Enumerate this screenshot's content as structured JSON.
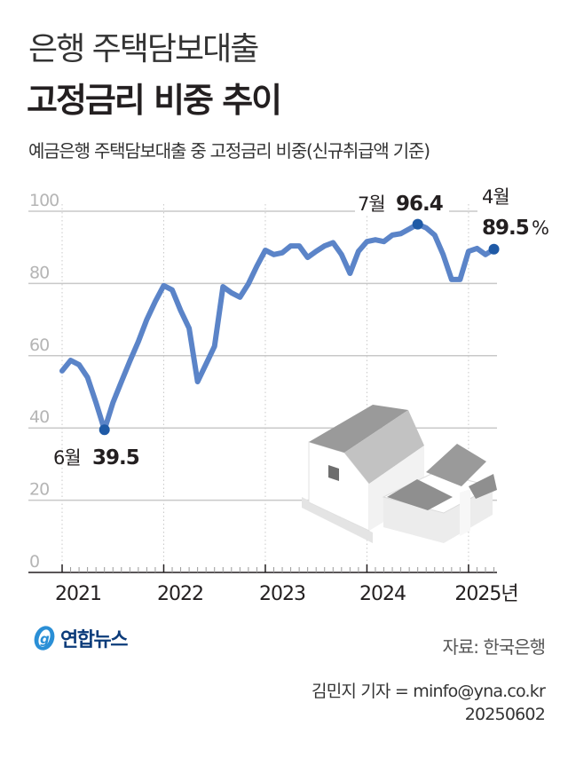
{
  "header": {
    "title_line1": "은행 주택담보대출",
    "title_line2": "고정금리 비중 추이",
    "subtitle": "예금은행 주택담보대출 중 고정금리 비중(신규취급액 기준)"
  },
  "chart_data": {
    "type": "line",
    "title": "은행 주택담보대출 고정금리 비중 추이",
    "subtitle": "예금은행 주택담보대출 중 고정금리 비중(신규취급액 기준)",
    "xlabel": "",
    "ylabel": "",
    "unit": "%",
    "ylim": [
      0,
      100
    ],
    "yticks": [
      0,
      20,
      40,
      60,
      80,
      100
    ],
    "xticks": [
      "2021",
      "2022",
      "2023",
      "2024",
      "2025년"
    ],
    "grid": true,
    "legend": "none",
    "x": [
      "2021-01",
      "2021-02",
      "2021-03",
      "2021-04",
      "2021-05",
      "2021-06",
      "2021-07",
      "2021-08",
      "2021-09",
      "2021-10",
      "2021-11",
      "2021-12",
      "2022-01",
      "2022-02",
      "2022-03",
      "2022-04",
      "2022-05",
      "2022-06",
      "2022-07",
      "2022-08",
      "2022-09",
      "2022-10",
      "2022-11",
      "2022-12",
      "2023-01",
      "2023-02",
      "2023-03",
      "2023-04",
      "2023-05",
      "2023-06",
      "2023-07",
      "2023-08",
      "2023-09",
      "2023-10",
      "2023-11",
      "2023-12",
      "2024-01",
      "2024-02",
      "2024-03",
      "2024-04",
      "2024-05",
      "2024-06",
      "2024-07",
      "2024-08",
      "2024-09",
      "2024-10",
      "2024-11",
      "2024-12",
      "2025-01",
      "2025-02",
      "2025-03",
      "2025-04"
    ],
    "series": [
      {
        "name": "고정금리 비중",
        "color": "#5b84c8",
        "values": [
          55.8,
          58.7,
          57.5,
          54.0,
          47.0,
          39.5,
          47.0,
          52.8,
          58.5,
          63.9,
          70.0,
          75.0,
          79.4,
          78.2,
          72.5,
          67.6,
          52.8,
          57.7,
          62.6,
          79.1,
          77.4,
          76.2,
          79.9,
          84.8,
          89.2,
          88.0,
          88.5,
          90.4,
          90.4,
          87.2,
          88.9,
          90.4,
          91.3,
          88.0,
          82.8,
          88.9,
          91.6,
          92.1,
          91.6,
          93.4,
          93.8,
          95.1,
          96.4,
          95.4,
          93.4,
          88.0,
          81.1,
          81.1,
          88.9,
          89.7,
          88.0,
          89.5
        ]
      }
    ],
    "annotations": [
      {
        "index": 5,
        "month_label": "6월",
        "value_label": "39.5"
      },
      {
        "index": 42,
        "month_label": "7월",
        "value_label": "96.4"
      },
      {
        "index": 51,
        "month_label": "4월",
        "value_label": "89.5",
        "suffix": "%"
      }
    ]
  },
  "axis": {
    "y_labels": [
      "100",
      "80",
      "60",
      "40",
      "20",
      "0"
    ],
    "x_labels": [
      "2021",
      "2022",
      "2023",
      "2024",
      "2025년"
    ]
  },
  "annotations": {
    "min": {
      "month": "6월",
      "value": "39.5"
    },
    "max": {
      "month": "7월",
      "value": "96.4"
    },
    "last": {
      "month": "4월",
      "value": "89.5",
      "unit": "%"
    }
  },
  "footer": {
    "logo_text": "연합뉴스",
    "source": "자료: 한국은행",
    "byline": "김민지 기자 = minfo@yna.co.kr",
    "date": "20250602"
  },
  "colors": {
    "line": "#5b84c8",
    "marker": "#1f5aa6",
    "grid": "#c8c8c8",
    "axis": "#231f20",
    "ytick_text": "#b5b5b5",
    "logo": "#0b3b7a",
    "logo_icon": "#2a8fd6"
  }
}
